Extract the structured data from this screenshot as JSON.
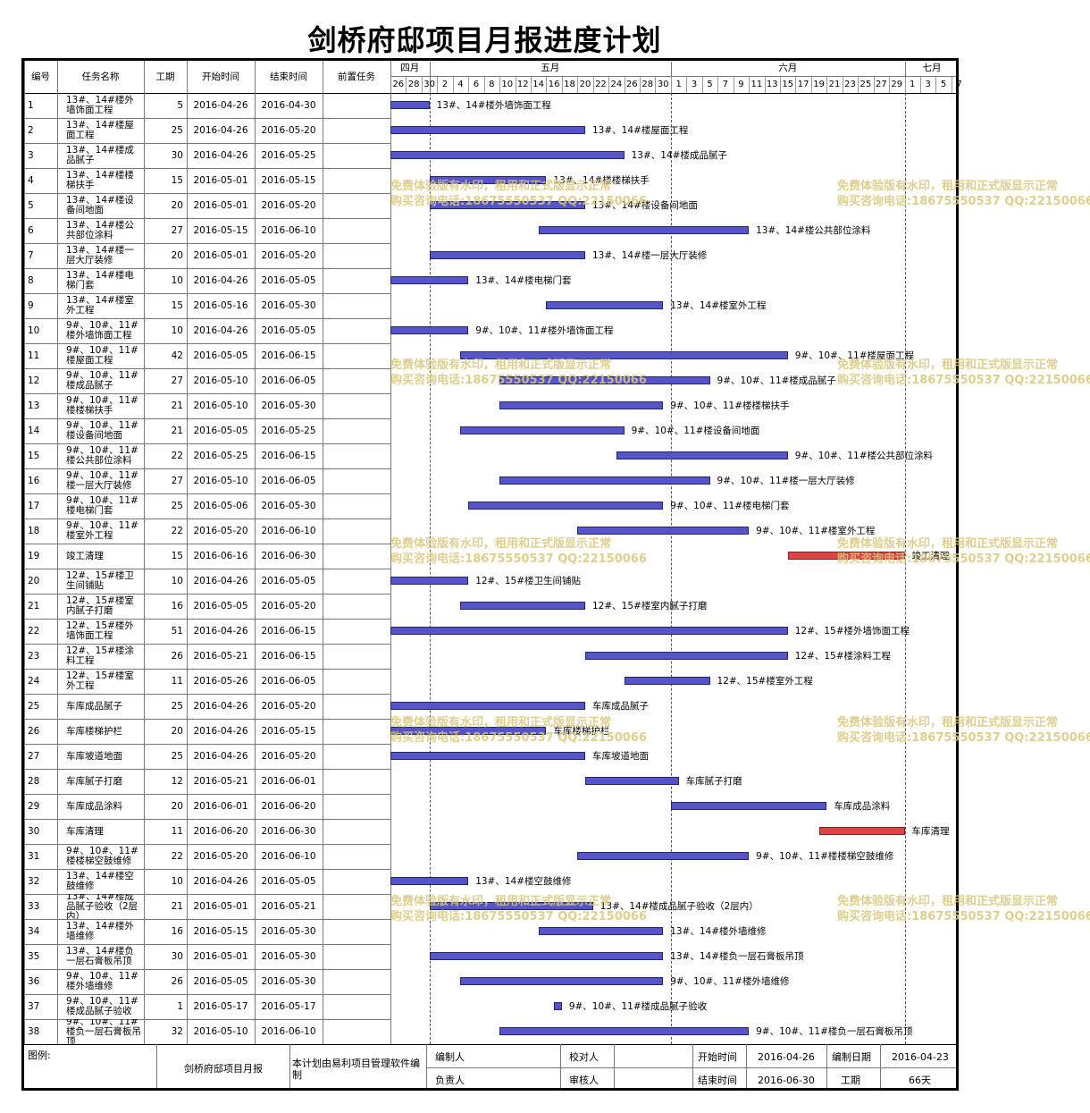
{
  "title": "剑桥府邸项目月报进度计划",
  "header": {
    "col_no": "编号",
    "col_name": "任务名称",
    "col_duration": "工期",
    "col_start": "开始时间",
    "col_end": "结束时间",
    "col_pred": "前置任务"
  },
  "months": [
    "四月",
    "五月",
    "六月",
    "七月"
  ],
  "days": [
    "26",
    "28",
    "30",
    "2",
    "4",
    "6",
    "8",
    "10",
    "12",
    "14",
    "16",
    "18",
    "20",
    "22",
    "24",
    "26",
    "28",
    "30",
    "1",
    "3",
    "5",
    "7",
    "9",
    "11",
    "13",
    "15",
    "17",
    "19",
    "21",
    "23",
    "25",
    "27",
    "29",
    "1",
    "3",
    "5",
    "7"
  ],
  "tasks": [
    {
      "no": "1",
      "name": "13#、14#楼外墙饰面工程",
      "dur": "5",
      "start": "2016-04-26",
      "end": "2016-04-30",
      "s": 0,
      "d": 5,
      "label": "13#、14#楼外墙饰面工程"
    },
    {
      "no": "2",
      "name": "13#、14#楼屋面工程",
      "dur": "25",
      "start": "2016-04-26",
      "end": "2016-05-20",
      "s": 0,
      "d": 25,
      "label": "13#、14#楼屋面工程"
    },
    {
      "no": "3",
      "name": "13#、14#楼成品腻子",
      "dur": "30",
      "start": "2016-04-26",
      "end": "2016-05-25",
      "s": 0,
      "d": 30,
      "label": "13#、14#楼成品腻子"
    },
    {
      "no": "4",
      "name": "13#、14#楼楼梯扶手",
      "dur": "15",
      "start": "2016-05-01",
      "end": "2016-05-15",
      "s": 5,
      "d": 15,
      "label": "13#、14#楼楼梯扶手"
    },
    {
      "no": "5",
      "name": "13#、14#楼设备间地面",
      "dur": "20",
      "start": "2016-05-01",
      "end": "2016-05-20",
      "s": 5,
      "d": 20,
      "label": "13#、14#楼设备间地面"
    },
    {
      "no": "6",
      "name": "13#、14#楼公共部位涂料",
      "dur": "27",
      "start": "2016-05-15",
      "end": "2016-06-10",
      "s": 19,
      "d": 27,
      "label": "13#、14#楼公共部位涂料"
    },
    {
      "no": "7",
      "name": "13#、14#楼一层大厅装修",
      "dur": "20",
      "start": "2016-05-01",
      "end": "2016-05-20",
      "s": 5,
      "d": 20,
      "label": "13#、14#楼一层大厅装修"
    },
    {
      "no": "8",
      "name": "13#、14#楼电梯门套",
      "dur": "10",
      "start": "2016-04-26",
      "end": "2016-05-05",
      "s": 0,
      "d": 10,
      "label": "13#、14#楼电梯门套"
    },
    {
      "no": "9",
      "name": "13#、14#楼室外工程",
      "dur": "15",
      "start": "2016-05-16",
      "end": "2016-05-30",
      "s": 20,
      "d": 15,
      "label": "13#、14#楼室外工程"
    },
    {
      "no": "10",
      "name": "9#、10#、11#楼外墙饰面工程",
      "dur": "10",
      "start": "2016-04-26",
      "end": "2016-05-05",
      "s": 0,
      "d": 10,
      "label": "9#、10#、11#楼外墙饰面工程"
    },
    {
      "no": "11",
      "name": "9#、10#、11#楼屋面工程",
      "dur": "42",
      "start": "2016-05-05",
      "end": "2016-06-15",
      "s": 9,
      "d": 42,
      "label": "9#、10#、11#楼屋面工程"
    },
    {
      "no": "12",
      "name": "9#、10#、11#楼成品腻子",
      "dur": "27",
      "start": "2016-05-10",
      "end": "2016-06-05",
      "s": 14,
      "d": 27,
      "label": "9#、10#、11#楼成品腻子"
    },
    {
      "no": "13",
      "name": "9#、10#、11#楼楼梯扶手",
      "dur": "21",
      "start": "2016-05-10",
      "end": "2016-05-30",
      "s": 14,
      "d": 21,
      "label": "9#、10#、11#楼楼梯扶手"
    },
    {
      "no": "14",
      "name": "9#、10#、11#楼设备间地面",
      "dur": "21",
      "start": "2016-05-05",
      "end": "2016-05-25",
      "s": 9,
      "d": 21,
      "label": "9#、10#、11#楼设备间地面"
    },
    {
      "no": "15",
      "name": "9#、10#、11#楼公共部位涂料",
      "dur": "22",
      "start": "2016-05-25",
      "end": "2016-06-15",
      "s": 29,
      "d": 22,
      "label": "9#、10#、11#楼公共部位涂料"
    },
    {
      "no": "16",
      "name": "9#、10#、11#楼一层大厅装修",
      "dur": "27",
      "start": "2016-05-10",
      "end": "2016-06-05",
      "s": 14,
      "d": 27,
      "label": "9#、10#、11#楼一层大厅装修"
    },
    {
      "no": "17",
      "name": "9#、10#、11#楼电梯门套",
      "dur": "25",
      "start": "2016-05-06",
      "end": "2016-05-30",
      "s": 10,
      "d": 25,
      "label": "9#、10#、11#楼电梯门套"
    },
    {
      "no": "18",
      "name": "9#、10#、11#楼室外工程",
      "dur": "22",
      "start": "2016-05-20",
      "end": "2016-06-10",
      "s": 24,
      "d": 22,
      "label": "9#、10#、11#楼室外工程"
    },
    {
      "no": "19",
      "name": "竣工清理",
      "dur": "15",
      "start": "2016-06-16",
      "end": "2016-06-30",
      "s": 51,
      "d": 15,
      "label": "竣工清理",
      "crit": true
    },
    {
      "no": "20",
      "name": "12#、15#楼卫生间铺贴",
      "dur": "10",
      "start": "2016-04-26",
      "end": "2016-05-05",
      "s": 0,
      "d": 10,
      "label": "12#、15#楼卫生间铺贴"
    },
    {
      "no": "21",
      "name": "12#、15#楼室内腻子打磨",
      "dur": "16",
      "start": "2016-05-05",
      "end": "2016-05-20",
      "s": 9,
      "d": 16,
      "label": "12#、15#楼室内腻子打磨"
    },
    {
      "no": "22",
      "name": "12#、15#楼外墙饰面工程",
      "dur": "51",
      "start": "2016-04-26",
      "end": "2016-06-15",
      "s": 0,
      "d": 51,
      "label": "12#、15#楼外墙饰面工程"
    },
    {
      "no": "23",
      "name": "12#、15#楼涂料工程",
      "dur": "26",
      "start": "2016-05-21",
      "end": "2016-06-15",
      "s": 25,
      "d": 26,
      "label": "12#、15#楼涂料工程"
    },
    {
      "no": "24",
      "name": "12#、15#楼室外工程",
      "dur": "11",
      "start": "2016-05-26",
      "end": "2016-06-05",
      "s": 30,
      "d": 11,
      "label": "12#、15#楼室外工程"
    },
    {
      "no": "25",
      "name": "车库成品腻子",
      "dur": "25",
      "start": "2016-04-26",
      "end": "2016-05-20",
      "s": 0,
      "d": 25,
      "label": "车库成品腻子"
    },
    {
      "no": "26",
      "name": "车库楼梯护栏",
      "dur": "20",
      "start": "2016-04-26",
      "end": "2016-05-15",
      "s": 0,
      "d": 20,
      "label": "车库楼梯护栏"
    },
    {
      "no": "27",
      "name": "车库坡道地面",
      "dur": "25",
      "start": "2016-04-26",
      "end": "2016-05-20",
      "s": 0,
      "d": 25,
      "label": "车库坡道地面"
    },
    {
      "no": "28",
      "name": "车库腻子打磨",
      "dur": "12",
      "start": "2016-05-21",
      "end": "2016-06-01",
      "s": 25,
      "d": 12,
      "label": "车库腻子打磨"
    },
    {
      "no": "29",
      "name": "车库成品涂料",
      "dur": "20",
      "start": "2016-06-01",
      "end": "2016-06-20",
      "s": 36,
      "d": 20,
      "label": "车库成品涂料"
    },
    {
      "no": "30",
      "name": "车库清理",
      "dur": "11",
      "start": "2016-06-20",
      "end": "2016-06-30",
      "s": 55,
      "d": 11,
      "label": "车库清理",
      "crit": true
    },
    {
      "no": "31",
      "name": "9#、10#、11#楼楼梯空鼓维修",
      "dur": "22",
      "start": "2016-05-20",
      "end": "2016-06-10",
      "s": 24,
      "d": 22,
      "label": "9#、10#、11#楼楼梯空鼓维修"
    },
    {
      "no": "32",
      "name": "13#、14#楼空鼓维修",
      "dur": "10",
      "start": "2016-04-26",
      "end": "2016-05-05",
      "s": 0,
      "d": 10,
      "label": "13#、14#楼空鼓维修"
    },
    {
      "no": "33",
      "name": "13#、14#楼成品腻子验收（2层内）",
      "dur": "21",
      "start": "2016-05-01",
      "end": "2016-05-21",
      "s": 5,
      "d": 21,
      "label": "13#、14#楼成品腻子验收（2层内）"
    },
    {
      "no": "34",
      "name": "13#、14#楼外墙维修",
      "dur": "16",
      "start": "2016-05-15",
      "end": "2016-05-30",
      "s": 19,
      "d": 16,
      "label": "13#、14#楼外墙维修"
    },
    {
      "no": "35",
      "name": "13#、14#楼负一层石膏板吊顶",
      "dur": "30",
      "start": "2016-05-01",
      "end": "2016-05-30",
      "s": 5,
      "d": 30,
      "label": "13#、14#楼负一层石膏板吊顶"
    },
    {
      "no": "36",
      "name": "9#、10#、11#楼外墙维修",
      "dur": "26",
      "start": "2016-05-05",
      "end": "2016-05-30",
      "s": 9,
      "d": 26,
      "label": "9#、10#、11#楼外墙维修"
    },
    {
      "no": "37",
      "name": "9#、10#、11#楼成品腻子验收",
      "dur": "1",
      "start": "2016-05-17",
      "end": "2016-05-17",
      "s": 21,
      "d": 1,
      "label": "9#、10#、11#楼成品腻子验收"
    },
    {
      "no": "38",
      "name": "9#、10#、11#楼负一层石膏板吊顶",
      "dur": "32",
      "start": "2016-05-10",
      "end": "2016-06-10",
      "s": 14,
      "d": 32,
      "label": "9#、10#、11#楼负一层石膏板吊顶"
    }
  ],
  "footer": {
    "legend": "图例:",
    "report_name": "剑桥府邸项目月报",
    "software": "本计划由易利项目管理软件编制",
    "compiler_label": "编制人",
    "responsible_label": "负责人",
    "checker_label": "校对人",
    "reviewer_label": "审核人",
    "start_label": "开始时间",
    "start_value": "2016-04-26",
    "end_label": "结束时间",
    "end_value": "2016-06-30",
    "date_label": "编制日期",
    "date_value": "2016-04-23",
    "duration_label": "工期",
    "duration_value": "66天"
  },
  "watermark": {
    "line1": "免费体验版有水印，租用和正式版显示正常",
    "line2": "购买咨询电话:18675550537 QQ:22150066"
  },
  "colors": {
    "bar": "#5555c8",
    "critical_bar": "#dd4444",
    "watermark": "#d9c77a"
  }
}
